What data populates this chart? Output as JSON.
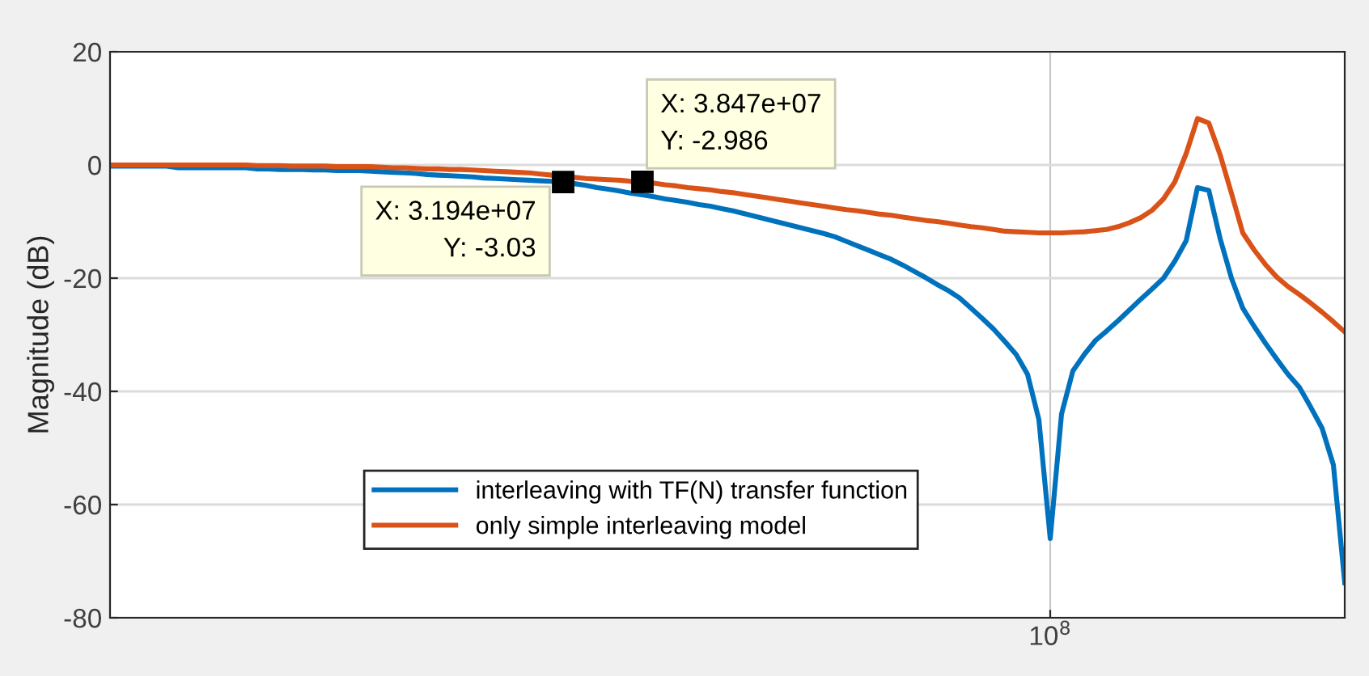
{
  "chart_data": {
    "type": "line",
    "ylabel": "Magnitude (dB)",
    "categories": [
      null,
      null,
      null,
      null,
      null,
      null,
      null,
      null,
      null,
      null,
      null,
      null,
      null,
      null,
      null,
      null,
      null,
      null,
      null,
      null,
      null,
      null,
      null,
      null,
      null,
      null,
      null,
      null,
      null,
      null,
      null,
      null,
      null,
      null,
      null,
      null,
      null,
      null,
      null,
      null,
      null,
      null,
      null,
      null,
      null,
      null,
      null,
      null,
      null,
      null,
      null,
      null,
      null,
      null,
      null,
      null,
      null,
      null,
      null,
      null,
      null,
      null,
      null,
      null,
      null,
      null,
      null,
      null,
      null,
      null,
      null,
      null,
      null,
      null,
      null,
      null,
      null,
      null,
      null,
      null,
      null,
      null,
      null,
      "10$^{8}$",
      null,
      null,
      null,
      null,
      null,
      null,
      null,
      null,
      null,
      null,
      null,
      null,
      null,
      null,
      null,
      null,
      null,
      null,
      null,
      null,
      null,
      null,
      null,
      null,
      null,
      null
    ],
    "ylim": [
      -80,
      20
    ],
    "yticks": [
      -80,
      -60,
      -40,
      -20,
      0,
      20
    ],
    "grid": true,
    "legend": "bottom",
    "marker": "none",
    "line_style": "solid",
    "series": [
      {
        "name": "interleaving with TF(N) transfer function",
        "color": "#0072bd",
        "values": [
          -0.2,
          -0.2,
          -0.2,
          -0.2,
          -0.2,
          -0.2,
          -0.5,
          -0.5,
          -0.5,
          -0.5,
          -0.5,
          -0.5,
          -0.5,
          -0.7,
          -0.7,
          -0.8,
          -0.8,
          -0.8,
          -0.9,
          -0.9,
          -1.0,
          -1.0,
          -1.0,
          -1.1,
          -1.2,
          -1.3,
          -1.4,
          -1.5,
          -1.7,
          -1.8,
          -1.9,
          -2.0,
          -2.1,
          -2.3,
          -2.4,
          -2.5,
          -2.6,
          -2.7,
          -2.8,
          -2.9,
          -3.03,
          -3.3,
          -3.6,
          -4.0,
          -4.3,
          -4.6,
          -5.0,
          -5.3,
          -5.6,
          -6.0,
          -6.3,
          -6.6,
          -7.0,
          -7.3,
          -7.7,
          -8.1,
          -8.6,
          -9.1,
          -9.6,
          -10.1,
          -10.6,
          -11.1,
          -11.6,
          -12.1,
          -12.7,
          -13.5,
          -14.3,
          -15.1,
          -15.9,
          -16.7,
          -17.7,
          -18.8,
          -19.9,
          -21.1,
          -22.2,
          -23.5,
          -25.3,
          -27.1,
          -29,
          -31.2,
          -33.5,
          -37,
          -45,
          -66,
          -44,
          -36.4,
          -33.5,
          -31,
          -29.3,
          -27.5,
          -25.6,
          -23.7,
          -21.9,
          -20.0,
          -17,
          -13.4,
          -4,
          -4.5,
          -13,
          -20,
          -25.3,
          -28.5,
          -31.5,
          -34.3,
          -37,
          -39.3,
          -42.8,
          -46.5,
          -53,
          -73.8
        ],
        "value_labels": [
          null,
          null,
          null,
          null,
          null,
          null,
          null,
          null,
          null,
          null,
          null,
          null,
          null,
          null,
          null,
          null,
          null,
          null,
          null,
          null,
          null,
          null,
          null,
          null,
          null,
          null,
          null,
          null,
          null,
          null,
          null,
          null,
          null,
          null,
          null,
          null,
          null,
          null,
          null,
          null,
          "X: 3.194e+07\nY: -3.03",
          null,
          null,
          null,
          null,
          null,
          null,
          null,
          null,
          null,
          null,
          null,
          null,
          null,
          null,
          null,
          null,
          null,
          null,
          null,
          null,
          null,
          null,
          null,
          null,
          null,
          null,
          null,
          null,
          null,
          null,
          null,
          null,
          null,
          null,
          null,
          null,
          null,
          null,
          null,
          null,
          null,
          null,
          null,
          null,
          null,
          null,
          null,
          null,
          null,
          null,
          null,
          null,
          null,
          null,
          null,
          null,
          null,
          null,
          null,
          null,
          null,
          null,
          null,
          null,
          null,
          null,
          null,
          null,
          null
        ]
      },
      {
        "name": "only simple interleaving model",
        "color": "#d95319",
        "values": [
          0,
          0,
          0,
          0,
          0,
          0,
          0,
          0,
          0,
          0,
          0,
          0,
          0,
          -0.1,
          -0.1,
          -0.1,
          -0.2,
          -0.2,
          -0.2,
          -0.2,
          -0.3,
          -0.3,
          -0.3,
          -0.3,
          -0.4,
          -0.5,
          -0.5,
          -0.6,
          -0.7,
          -0.7,
          -0.8,
          -0.8,
          -0.9,
          -1.0,
          -1.1,
          -1.2,
          -1.3,
          -1.4,
          -1.6,
          -1.8,
          -2.0,
          -2.2,
          -2.4,
          -2.5,
          -2.6,
          -2.7,
          -2.9,
          -2.986,
          -3.2,
          -3.5,
          -3.7,
          -4.0,
          -4.2,
          -4.4,
          -4.7,
          -4.9,
          -5.2,
          -5.5,
          -5.8,
          -6.1,
          -6.4,
          -6.7,
          -7.0,
          -7.3,
          -7.6,
          -7.9,
          -8.1,
          -8.4,
          -8.7,
          -8.9,
          -9.2,
          -9.5,
          -9.8,
          -10.0,
          -10.3,
          -10.6,
          -10.9,
          -11.1,
          -11.4,
          -11.7,
          -11.8,
          -11.9,
          -12,
          -12,
          -12,
          -11.9,
          -11.8,
          -11.6,
          -11.4,
          -10.9,
          -10.2,
          -9.3,
          -8.0,
          -6.0,
          -3.0,
          2.0,
          8.2,
          7.4,
          1.8,
          -5.0,
          -12.0,
          -15.0,
          -17.6,
          -19.8,
          -21.5,
          -22.9,
          -24.4,
          -26.0,
          -27.7,
          -29.5
        ],
        "value_labels": [
          null,
          null,
          null,
          null,
          null,
          null,
          null,
          null,
          null,
          null,
          null,
          null,
          null,
          null,
          null,
          null,
          null,
          null,
          null,
          null,
          null,
          null,
          null,
          null,
          null,
          null,
          null,
          null,
          null,
          null,
          null,
          null,
          null,
          null,
          null,
          null,
          null,
          null,
          null,
          null,
          null,
          null,
          null,
          null,
          null,
          null,
          null,
          "X: 3.847e+07\nY: -2.986",
          null,
          null,
          null,
          null,
          null,
          null,
          null,
          null,
          null,
          null,
          null,
          null,
          null,
          null,
          null,
          null,
          null,
          null,
          null,
          null,
          null,
          null,
          null,
          null,
          null,
          null,
          null,
          null,
          null,
          null,
          null,
          null,
          null,
          null,
          null,
          null,
          null,
          null,
          null,
          null,
          null,
          null,
          null,
          null,
          null,
          null,
          null,
          null,
          null,
          null,
          null,
          null,
          null,
          null,
          null,
          null,
          null,
          null,
          null,
          null,
          null,
          null
        ]
      }
    ]
  }
}
